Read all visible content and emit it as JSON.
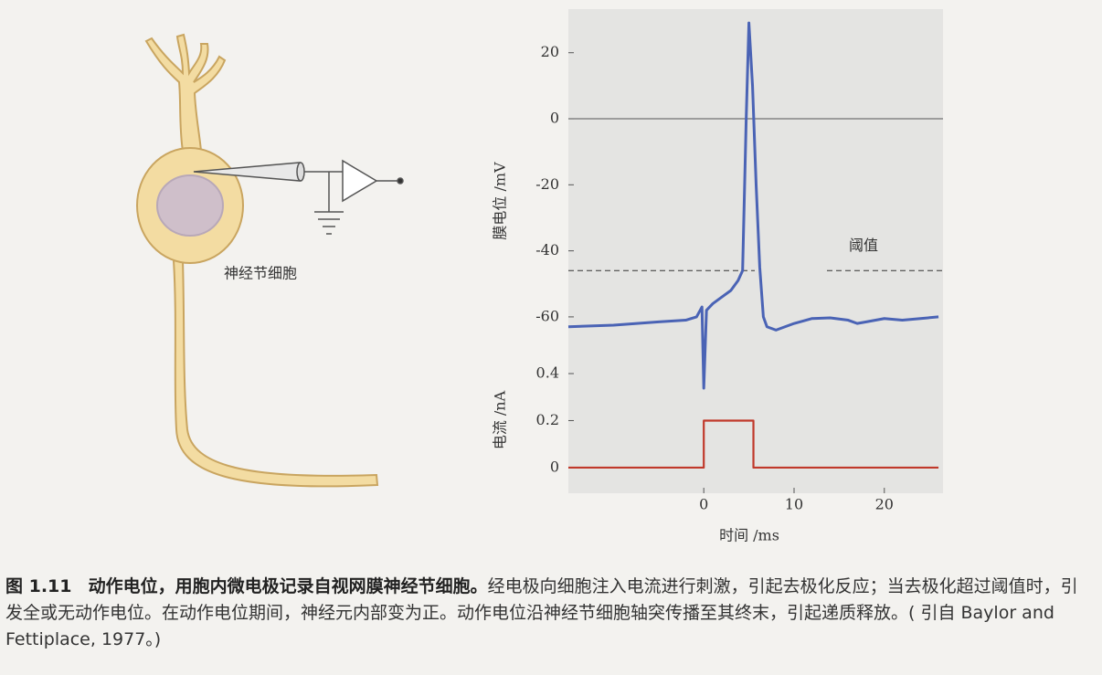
{
  "figure": {
    "cell_label": "神经节细胞"
  },
  "caption": {
    "label": "图 1.11",
    "title": "动作电位，用胞内微电极记录自视网膜神经节细胞。",
    "text": "经电极向细胞注入电流进行刺激，引起去极化反应；当去极化超过阈值时，引发全或无动作电位。在动作电位期间，神经元内部变为正。动作电位沿神经节细胞轴突传播至其终末，引起递质释放。( 引自 Baylor and Fettiplace, 1977。)"
  },
  "chart_data": [
    {
      "type": "line",
      "ylabel": "膜电位 /mV",
      "color": "#4a63b5",
      "xlim": [
        -15,
        26.5
      ],
      "ylim": [
        -81.6,
        33.2
      ],
      "yticks": [
        20,
        0,
        -20,
        -40,
        -60
      ],
      "zero_line": true,
      "threshold": {
        "value": -46,
        "label": "阈值"
      },
      "x": [
        -15,
        -10,
        -5,
        -2,
        -0.8,
        -0.2,
        0,
        0.3,
        1,
        2,
        3,
        3.8,
        4.3,
        4.7,
        5,
        5.4,
        5.8,
        6.2,
        6.6,
        7,
        8,
        10,
        12,
        14,
        16,
        17,
        18,
        20,
        22,
        24,
        26
      ],
      "values": [
        -63,
        -62.5,
        -61.5,
        -61,
        -60,
        -57,
        -81.6,
        -58,
        -56,
        -54,
        -52,
        -49,
        -46,
        0,
        29,
        10,
        -20,
        -45,
        -60,
        -63,
        -64,
        -62,
        -60.5,
        -60.3,
        -61,
        -62,
        -61.5,
        -60.5,
        -61,
        -60.5,
        -60
      ]
    },
    {
      "type": "line",
      "ylabel": "电流 /nA",
      "xlabel": "时间 /ms",
      "color": "#c0392b",
      "xlim": [
        -15,
        26.5
      ],
      "ylim": [
        -0.109,
        0.435
      ],
      "yticks": [
        0.4,
        0.2,
        0
      ],
      "xticks": [
        0,
        10,
        20
      ],
      "x": [
        -15,
        0,
        0,
        5.5,
        5.5,
        26
      ],
      "values": [
        0,
        0,
        0.2,
        0.2,
        0,
        0
      ]
    }
  ]
}
